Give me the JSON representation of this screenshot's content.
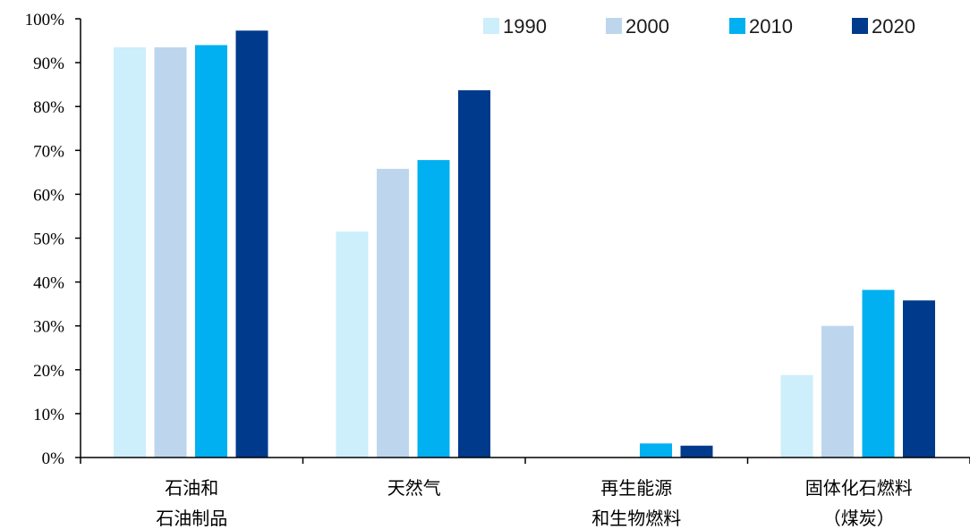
{
  "chart_data": {
    "type": "bar",
    "categories": [
      [
        "石油和",
        "石油制品"
      ],
      [
        "天然气"
      ],
      [
        "再生能源",
        "和生物燃料"
      ],
      [
        "固体化石燃料",
        "（煤炭）"
      ]
    ],
    "series": [
      {
        "name": "1990",
        "color": "#cdeefb",
        "values": [
          93.5,
          51.5,
          0,
          18.8
        ]
      },
      {
        "name": "2000",
        "color": "#bdd6ee",
        "values": [
          93.5,
          65.8,
          0,
          30.0
        ]
      },
      {
        "name": "2010",
        "color": "#00b0f0",
        "values": [
          94.0,
          67.8,
          3.2,
          38.2
        ]
      },
      {
        "name": "2020",
        "color": "#003a8c",
        "values": [
          97.3,
          83.7,
          2.7,
          35.8
        ]
      }
    ],
    "ylim": [
      0,
      100
    ],
    "yticks": [
      "0%",
      "10%",
      "20%",
      "30%",
      "40%",
      "50%",
      "60%",
      "70%",
      "80%",
      "90%",
      "100%"
    ],
    "legend_position": "top-right",
    "grid": false
  }
}
